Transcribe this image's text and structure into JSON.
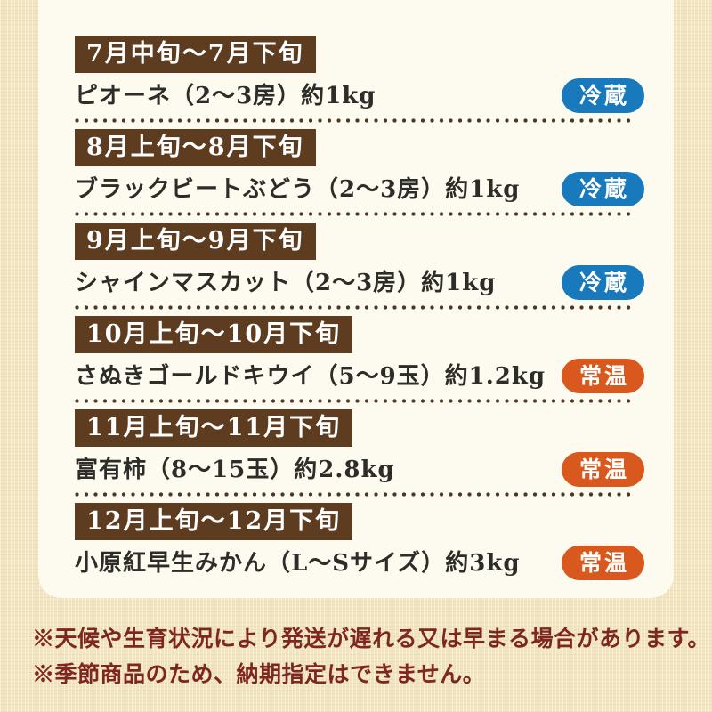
{
  "schedule": {
    "rows": [
      {
        "period": "7月中旬～7月下旬",
        "product": "ピオーネ（2～3房）約1kg",
        "badge": "冷蔵",
        "storage_type": "refrigerated"
      },
      {
        "period": "8月上旬～8月下旬",
        "product": "ブラックビートぶどう（2～3房）約1kg",
        "badge": "冷蔵",
        "storage_type": "refrigerated"
      },
      {
        "period": "9月上旬～9月下旬",
        "product": "シャインマスカット（2～3房）約1kg",
        "badge": "冷蔵",
        "storage_type": "refrigerated"
      },
      {
        "period": "10月上旬～10月下旬",
        "product": "さぬきゴールドキウイ（5～9玉）約1.2kg",
        "badge": "常温",
        "storage_type": "room_temperature"
      },
      {
        "period": "11月上旬～11月下旬",
        "product": "富有柿（8～15玉）約2.8kg",
        "badge": "常温",
        "storage_type": "room_temperature"
      },
      {
        "period": "12月上旬～12月下旬",
        "product": "小原紅早生みかん（L～Sサイズ）約3kg",
        "badge": "常温",
        "storage_type": "room_temperature"
      }
    ]
  },
  "notes": [
    "※天候や生育状況により発送が遅れる又は早まる場合があります。",
    "※季節商品のため、納期指定はできません。"
  ],
  "badge_colors": {
    "refrigerated": "#1879bc",
    "room_temperature": "#d8581d"
  },
  "colors": {
    "outer_background": "#f2e5c1",
    "panel_background": "#fdfaef",
    "period_label_background": "#5e3c20",
    "product_text": "#2e2c29",
    "dotted_divider": "#4c3626",
    "note_text": "#7e2721"
  }
}
